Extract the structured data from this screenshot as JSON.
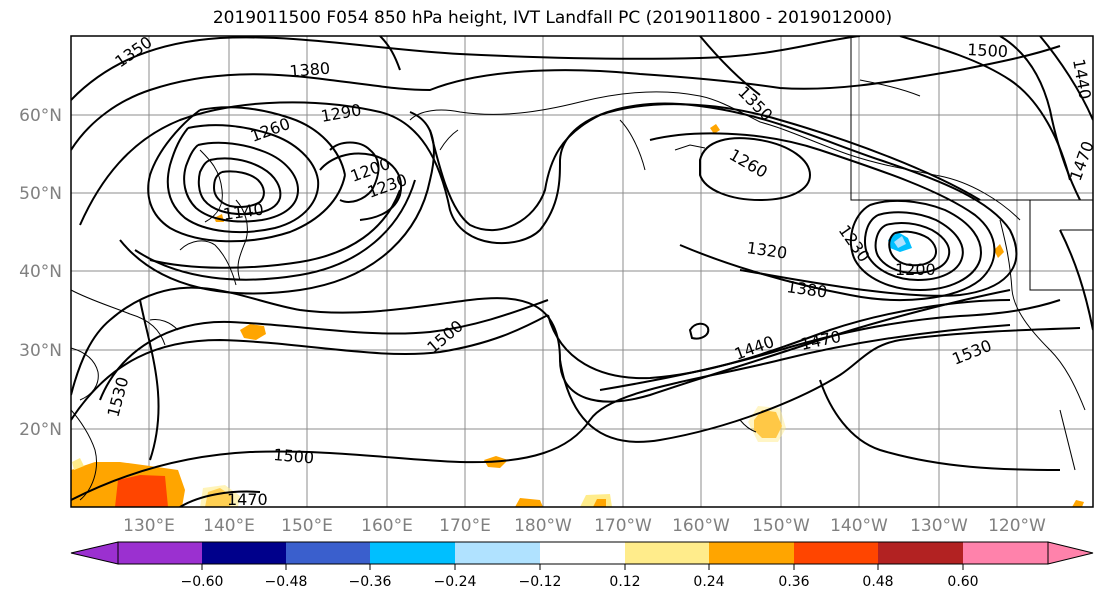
{
  "title": "2019011500 F054 850 hPa height, IVT Landfall PC (2019011800 - 2019012000)",
  "map": {
    "lat_labels": [
      "60°N",
      "50°N",
      "40°N",
      "30°N",
      "20°N"
    ],
    "lon_labels": [
      "130°E",
      "140°E",
      "150°E",
      "160°E",
      "170°E",
      "180°W",
      "170°W",
      "160°W",
      "150°W",
      "140°W",
      "130°W",
      "120°W"
    ],
    "contour_labels": [
      "1350",
      "1380",
      "1290",
      "1260",
      "1200",
      "1230",
      "1140",
      "1350",
      "1260",
      "1320",
      "1380",
      "1230",
      "1200",
      "1500",
      "1440",
      "1470",
      "1530",
      "1500",
      "1470",
      "1530",
      "1500",
      "1440",
      "1470"
    ],
    "colors": {
      "contour": "#000000",
      "grid": "#8c8c8c",
      "land": "#000000"
    }
  },
  "colorbar": {
    "tick_labels": [
      "−0.60",
      "−0.48",
      "−0.36",
      "−0.24",
      "−0.12",
      "0.12",
      "0.24",
      "0.36",
      "0.48",
      "0.60"
    ],
    "colors": [
      "#9b30d0",
      "#00008b",
      "#3a5fcd",
      "#00bfff",
      "#b0e2ff",
      "#ffffff",
      "#ffec8b",
      "#ffa500",
      "#ff4500",
      "#b22222",
      "#ff82ab"
    ]
  }
}
